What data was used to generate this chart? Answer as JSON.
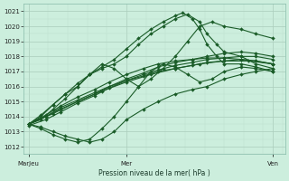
{
  "xlabel": "Pression niveau de la mer( hPa )",
  "bg_color": "#cceedd",
  "grid_color_major": "#aaccbb",
  "grid_color_minor": "#bbddcc",
  "line_color": "#1a5c28",
  "marker": "D",
  "markersize": 2.0,
  "linewidth": 0.8,
  "ylim": [
    1011.5,
    1021.5
  ],
  "yticks": [
    1012,
    1013,
    1014,
    1015,
    1016,
    1017,
    1018,
    1019,
    1020,
    1021
  ],
  "xtick_labels": [
    "MarJeu",
    "Mer",
    "Ven"
  ],
  "xtick_positions": [
    0,
    0.4,
    1.0
  ],
  "series": [
    {
      "x": [
        0.0,
        0.07,
        0.13,
        0.2,
        0.27,
        0.33,
        0.4,
        0.47,
        0.53,
        0.6,
        0.67,
        0.73,
        0.8,
        0.87,
        0.93,
        1.0
      ],
      "y": [
        1013.5,
        1014.0,
        1014.6,
        1015.1,
        1015.6,
        1016.0,
        1016.5,
        1016.9,
        1017.3,
        1017.6,
        1017.8,
        1018.0,
        1018.2,
        1018.3,
        1018.2,
        1018.0
      ]
    },
    {
      "x": [
        0.0,
        0.07,
        0.13,
        0.2,
        0.27,
        0.33,
        0.4,
        0.47,
        0.53,
        0.6,
        0.67,
        0.73,
        0.8,
        0.87,
        0.93,
        1.0
      ],
      "y": [
        1013.5,
        1014.1,
        1014.7,
        1015.3,
        1015.8,
        1016.3,
        1016.8,
        1017.2,
        1017.5,
        1017.7,
        1017.8,
        1017.9,
        1017.9,
        1017.8,
        1017.7,
        1017.5
      ]
    },
    {
      "x": [
        0.0,
        0.07,
        0.13,
        0.2,
        0.27,
        0.33,
        0.4,
        0.47,
        0.53,
        0.6,
        0.67,
        0.73,
        0.8,
        0.87,
        0.93,
        1.0
      ],
      "y": [
        1013.4,
        1013.8,
        1014.3,
        1014.9,
        1015.4,
        1015.9,
        1016.4,
        1016.8,
        1017.1,
        1017.4,
        1017.6,
        1017.8,
        1017.9,
        1018.0,
        1018.0,
        1017.8
      ]
    },
    {
      "x": [
        0.0,
        0.07,
        0.13,
        0.2,
        0.27,
        0.33,
        0.4,
        0.47,
        0.53,
        0.6,
        0.67,
        0.73,
        0.8,
        0.87,
        0.93,
        1.0
      ],
      "y": [
        1013.5,
        1014.0,
        1014.5,
        1015.0,
        1015.5,
        1016.0,
        1016.4,
        1016.7,
        1017.0,
        1017.2,
        1017.4,
        1017.6,
        1017.7,
        1017.8,
        1017.7,
        1017.5
      ]
    },
    {
      "x": [
        0.0,
        0.05,
        0.1,
        0.15,
        0.2,
        0.25,
        0.3,
        0.35,
        0.4,
        0.47,
        0.53,
        0.6,
        0.67,
        0.73,
        0.8,
        0.87,
        0.93,
        1.0
      ],
      "y": [
        1013.5,
        1013.3,
        1013.0,
        1012.7,
        1012.5,
        1012.3,
        1012.5,
        1013.0,
        1013.8,
        1014.5,
        1015.0,
        1015.5,
        1015.8,
        1016.0,
        1016.5,
        1016.8,
        1017.0,
        1017.2
      ]
    },
    {
      "x": [
        0.0,
        0.05,
        0.1,
        0.15,
        0.2,
        0.25,
        0.3,
        0.35,
        0.4,
        0.45,
        0.5,
        0.55,
        0.6,
        0.65,
        0.7,
        0.75,
        0.8,
        0.87,
        0.93,
        1.0
      ],
      "y": [
        1013.5,
        1013.2,
        1012.8,
        1012.5,
        1012.3,
        1012.5,
        1013.2,
        1014.0,
        1015.0,
        1016.0,
        1017.0,
        1017.5,
        1017.3,
        1016.8,
        1016.3,
        1016.5,
        1017.0,
        1017.3,
        1017.2,
        1017.0
      ]
    },
    {
      "x": [
        0.0,
        0.05,
        0.1,
        0.15,
        0.2,
        0.25,
        0.3,
        0.35,
        0.4,
        0.45,
        0.5,
        0.55,
        0.6,
        0.65,
        0.7,
        0.73,
        0.77,
        0.8,
        0.87,
        0.93,
        1.0
      ],
      "y": [
        1013.5,
        1014.0,
        1014.8,
        1015.5,
        1016.0,
        1016.8,
        1017.2,
        1017.5,
        1018.0,
        1018.8,
        1019.5,
        1020.0,
        1020.5,
        1020.8,
        1020.3,
        1019.5,
        1018.8,
        1018.3,
        1018.0,
        1017.5,
        1017.2
      ]
    },
    {
      "x": [
        0.0,
        0.05,
        0.1,
        0.15,
        0.2,
        0.25,
        0.3,
        0.35,
        0.4,
        0.45,
        0.5,
        0.55,
        0.6,
        0.63,
        0.67,
        0.7,
        0.73,
        0.77,
        0.8,
        0.87,
        0.93,
        1.0
      ],
      "y": [
        1013.5,
        1014.1,
        1014.8,
        1015.5,
        1016.2,
        1016.8,
        1017.3,
        1017.8,
        1018.5,
        1019.2,
        1019.8,
        1020.3,
        1020.7,
        1020.9,
        1020.5,
        1019.8,
        1018.8,
        1018.0,
        1017.5,
        1017.5,
        1017.3,
        1017.0
      ]
    },
    {
      "x": [
        0.0,
        0.05,
        0.1,
        0.15,
        0.2,
        0.25,
        0.3,
        0.35,
        0.4,
        0.45,
        0.5,
        0.55,
        0.6,
        0.65,
        0.7,
        0.75,
        0.8,
        0.87,
        0.93,
        1.0
      ],
      "y": [
        1013.5,
        1013.8,
        1014.5,
        1015.2,
        1016.0,
        1016.8,
        1017.5,
        1017.2,
        1016.5,
        1016.0,
        1016.5,
        1017.2,
        1018.0,
        1019.0,
        1020.0,
        1020.3,
        1020.0,
        1019.8,
        1019.5,
        1019.2
      ]
    },
    {
      "x": [
        0.0,
        0.1,
        0.2,
        0.3,
        0.4,
        0.5,
        0.6,
        0.7,
        0.8,
        0.9,
        1.0
      ],
      "y": [
        1013.5,
        1014.2,
        1015.0,
        1015.7,
        1016.3,
        1016.8,
        1017.2,
        1017.5,
        1017.7,
        1017.7,
        1017.5
      ]
    }
  ]
}
